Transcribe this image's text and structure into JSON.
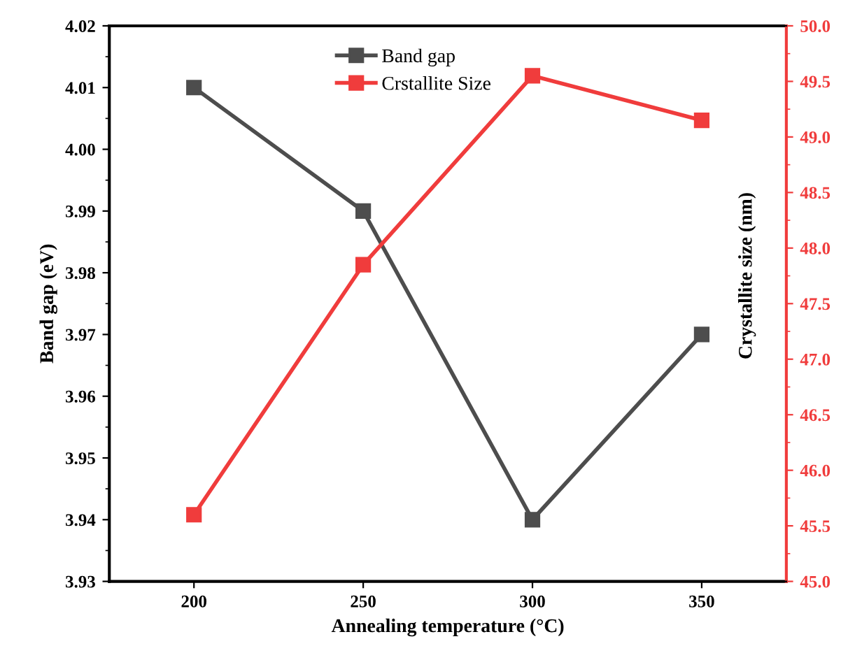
{
  "chart_data": {
    "type": "line",
    "x": [
      200,
      250,
      300,
      350
    ],
    "xlabel": "Annealing temperature (°C)",
    "ylabel": "Band gap (eV)",
    "y2label": "Crystallite size (nm)",
    "series": [
      {
        "name": "Band gap",
        "color": "#4d4d4d",
        "values": [
          4.01,
          3.99,
          3.94,
          3.97
        ]
      },
      {
        "name": "Crstallite Size",
        "color": "#f03c3c",
        "values": [
          45.6,
          47.85,
          49.55,
          49.15
        ],
        "axis": "y2"
      }
    ],
    "xlim": [
      175,
      375
    ],
    "xticks": [
      200,
      250,
      300,
      350
    ],
    "ylim": [
      3.93,
      4.02
    ],
    "yticks": [
      {
        "value": 3.93,
        "label": "3.93"
      },
      {
        "value": 3.94,
        "label": "3.94"
      },
      {
        "value": 3.95,
        "label": "3.95"
      },
      {
        "value": 3.96,
        "label": "3.96"
      },
      {
        "value": 3.97,
        "label": "3.97"
      },
      {
        "value": 3.98,
        "label": "3.98"
      },
      {
        "value": 3.99,
        "label": "3.99"
      },
      {
        "value": 4.0,
        "label": "4.00"
      },
      {
        "value": 4.01,
        "label": "4.01"
      },
      {
        "value": 4.02,
        "label": "4.02"
      }
    ],
    "y2lim": [
      45.0,
      50.0
    ],
    "y2ticks": [
      {
        "value": 45.0,
        "label": "45.0"
      },
      {
        "value": 45.5,
        "label": "45.5"
      },
      {
        "value": 46.0,
        "label": "46.0"
      },
      {
        "value": 46.5,
        "label": "46.5"
      },
      {
        "value": 47.0,
        "label": "47.0"
      },
      {
        "value": 47.5,
        "label": "47.5"
      },
      {
        "value": 48.0,
        "label": "48.0"
      },
      {
        "value": 48.5,
        "label": "48.5"
      },
      {
        "value": 49.0,
        "label": "49.0"
      },
      {
        "value": 49.5,
        "label": "49.5"
      },
      {
        "value": 50.0,
        "label": "50.0"
      }
    ],
    "marker": "square",
    "line_style": "solid",
    "grid": false,
    "legend": "top"
  }
}
